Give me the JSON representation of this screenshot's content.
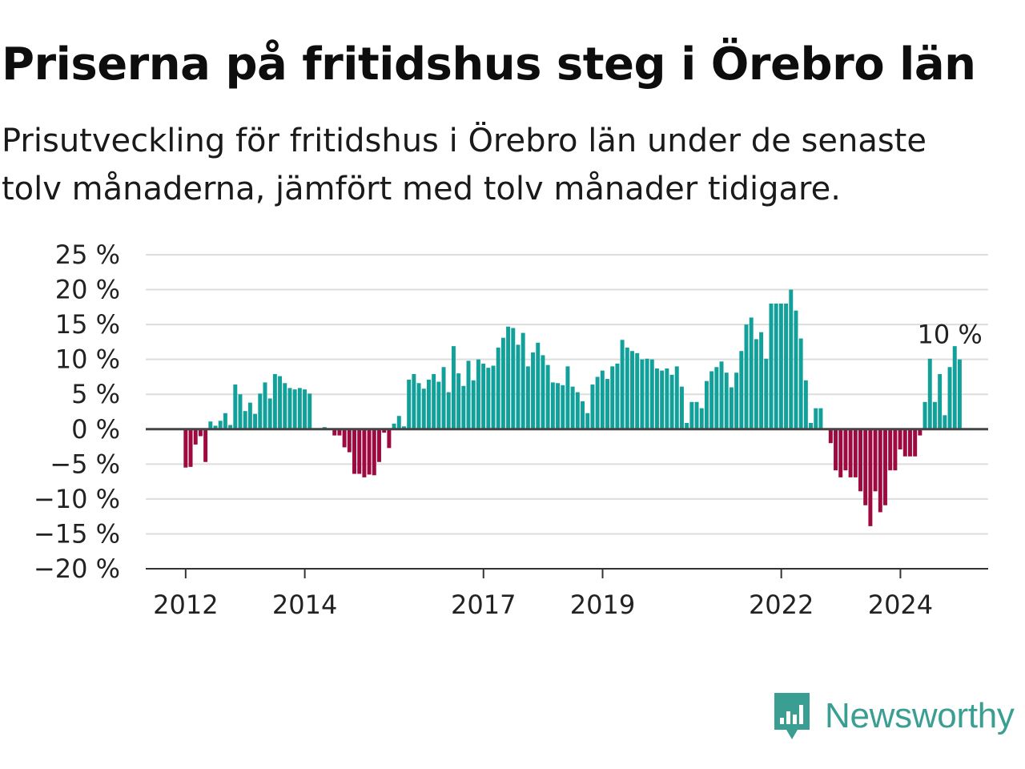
{
  "header": {
    "title": "Priserna på fritidshus steg i Örebro län",
    "subtitle_line1": "Prisutveckling för fritidshus i Örebro län under de senaste",
    "subtitle_line2": "tolv månaderna, jämfört med tolv månader tidigare."
  },
  "brand": {
    "name": "Newsworthy",
    "icon": "newsworthy-logo-icon",
    "color": "#3a9e92"
  },
  "chart_data": {
    "type": "bar",
    "title": "Priserna på fritidshus steg i Örebro län",
    "y_tick_labels": [
      "25 %",
      "20 %",
      "15 %",
      "10 %",
      "5 %",
      "0 %",
      "−5 %",
      "−10 %",
      "−15 %",
      "−20 %"
    ],
    "y_ticks": [
      25,
      20,
      15,
      10,
      5,
      0,
      -5,
      -10,
      -15,
      -20
    ],
    "ylim": [
      -20,
      25
    ],
    "x_tick_labels": [
      "2012",
      "2014",
      "2017",
      "2019",
      "2022",
      "2024"
    ],
    "x_ticks": [
      2012,
      2014,
      2017,
      2019,
      2022,
      2024
    ],
    "xlim": [
      2011.33,
      2025.5
    ],
    "grid": "horizontal",
    "colors": {
      "positive": "#12a19a",
      "negative": "#9e0a3f",
      "grid": "#dddddd",
      "axis": "#444444"
    },
    "annotation": {
      "text": "10 %",
      "x": 2024.83,
      "y": 10
    },
    "x_start": 2012.0,
    "step": 0.0833,
    "values": [
      -5.5,
      -5.4,
      -2.2,
      -1.0,
      -4.7,
      1.1,
      0.5,
      1.2,
      2.3,
      0.6,
      6.4,
      5.0,
      2.6,
      3.8,
      2.2,
      5.1,
      6.7,
      4.4,
      7.9,
      7.6,
      6.6,
      5.9,
      5.7,
      5.9,
      5.7,
      5.1,
      null,
      null,
      0.3,
      0.1,
      -0.9,
      -0.9,
      -2.6,
      -3.3,
      -6.4,
      -6.4,
      -6.9,
      -6.5,
      -6.6,
      -4.7,
      -0.5,
      -2.7,
      0.8,
      1.9,
      0.4,
      7.1,
      7.9,
      6.6,
      5.8,
      7.1,
      7.9,
      6.8,
      8.9,
      5.3,
      11.9,
      8.0,
      6.2,
      9.8,
      7.0,
      10.0,
      9.4,
      8.8,
      9.1,
      11.7,
      13.1,
      14.7,
      14.5,
      12.1,
      13.8,
      9.0,
      11.0,
      12.4,
      10.6,
      9.2,
      6.7,
      6.6,
      6.3,
      9.0,
      6.1,
      5.3,
      4.0,
      2.3,
      6.4,
      7.5,
      8.4,
      7.2,
      9.0,
      9.4,
      12.8,
      11.7,
      11.2,
      10.9,
      10.0,
      10.1,
      10.0,
      8.7,
      8.4,
      8.7,
      7.8,
      9.0,
      6.1,
      0.9,
      3.9,
      3.9,
      3.0,
      6.9,
      8.3,
      8.9,
      9.7,
      8.1,
      6.0,
      8.1,
      11.2,
      15.0,
      16.0,
      12.9,
      13.9,
      10.1,
      18.0,
      18.0,
      18.0,
      18.0,
      20.0,
      17.0,
      13.0,
      7.0,
      0.9,
      3.0,
      3.0,
      null,
      -2.0,
      -5.9,
      -6.9,
      -5.9,
      -6.9,
      -6.9,
      -8.9,
      -10.9,
      -13.9,
      -8.9,
      -11.9,
      -10.9,
      -5.9,
      -5.9,
      -2.9,
      -3.9,
      -3.9,
      -3.9,
      -0.9,
      3.9,
      10.1,
      3.9,
      7.9,
      2.0,
      8.9,
      11.9,
      10.0
    ]
  }
}
